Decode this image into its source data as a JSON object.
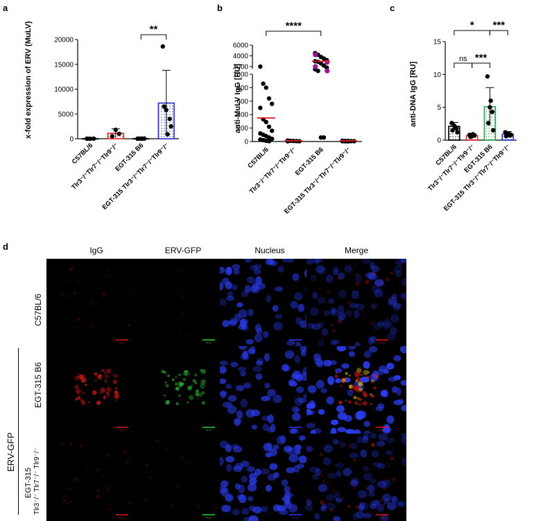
{
  "panel_letters": [
    "a",
    "b",
    "c",
    "d"
  ],
  "colors": {
    "black": "#000000",
    "red_series": "#e8222a",
    "blue_series": "#2431d6",
    "green_series": "#27a844",
    "magenta_points": "#a0119c",
    "mean_line": "#e8222a"
  },
  "chart_data": [
    {
      "panel": "a",
      "type": "bar",
      "ylabel": "x-fold expression of ERV (MuLV)",
      "ylim": [
        0,
        20000
      ],
      "yticks": [
        "0",
        "5000",
        "10000",
        "15000",
        "20000"
      ],
      "categories": [
        "C57BL/6",
        "Tlr3⁻/⁻Tlr7⁻/⁻Tlr9⁻/⁻",
        "EGT-315 B6",
        "EGT-315 Tlr3⁻/⁻Tlr7⁻/⁻Tlr9⁻/⁻"
      ],
      "values": [
        20,
        1100,
        30,
        7200
      ],
      "errors": [
        30,
        900,
        40,
        6600
      ],
      "points": [
        [
          20,
          15,
          25,
          10
        ],
        [
          500,
          1800,
          1000
        ],
        [
          10,
          20,
          40,
          30,
          25
        ],
        [
          18600,
          5800,
          4000,
          6500,
          900,
          2500
        ]
      ],
      "bar_colors": [
        "#000000",
        "#e8222a",
        "#000000",
        "#2431d6"
      ],
      "annotations": [
        {
          "text": "**",
          "between": [
            2,
            3
          ]
        }
      ]
    },
    {
      "panel": "b",
      "type": "scatter",
      "ylabel": "anti-MuLV IgG [RU]",
      "yticks_lower": [
        "0",
        "200",
        "400",
        "600",
        "800",
        "1000"
      ],
      "yticks_upper": [
        "2000",
        "4000",
        "6000"
      ],
      "categories": [
        "C57BL/6",
        "Tlr3⁻/⁻Tlr7⁻/⁻Tlr9⁻/⁻",
        "EGT-315 B6",
        "EGT-315 Tlr3⁻/⁻Tlr7⁻/⁻Tlr9⁻/⁻"
      ],
      "means": [
        350,
        10,
        3000,
        10
      ],
      "points": [
        [
          2000,
          860,
          800,
          640,
          560,
          500,
          330,
          290,
          220,
          160,
          120,
          100,
          80,
          60,
          40,
          30,
          20,
          10,
          5
        ],
        [
          15,
          10,
          8,
          6,
          4,
          3
        ],
        [
          4500,
          4200,
          3800,
          3500,
          3200,
          3000,
          2900,
          2600,
          2200,
          1800,
          1500,
          1200,
          60,
          60
        ],
        [
          12,
          10,
          8,
          6,
          5,
          4,
          3,
          2
        ]
      ],
      "magenta_points_group2": [
        4200,
        2800,
        2000,
        1200
      ],
      "annotations": [
        {
          "text": "****",
          "between": [
            0,
            2
          ]
        }
      ]
    },
    {
      "panel": "c",
      "type": "bar",
      "ylabel": "anti-DNA IgG  [RU]",
      "ylim": [
        0,
        15
      ],
      "yticks": [
        "0",
        "5",
        "10",
        "15"
      ],
      "categories": [
        "C57BL/6",
        "Tlr3⁻/⁻Tlr7⁻/⁻Tlr9⁻/⁻",
        "EGT-315 B6",
        "EGT-315 Tlr3⁻/⁻Tlr7⁻/⁻Tlr9⁻/⁻"
      ],
      "values": [
        2.1,
        0.7,
        5.1,
        0.9
      ],
      "errors": [
        0.6,
        0.3,
        2.9,
        0.4
      ],
      "points": [
        [
          2.6,
          2.2,
          1.8,
          1.5,
          2.0,
          1.2
        ],
        [
          0.8,
          0.6,
          0.7,
          0.5,
          0.9
        ],
        [
          9.7,
          5.0,
          4.3,
          2.6,
          6.0,
          1.5
        ],
        [
          1.2,
          0.9,
          0.7,
          0.6,
          1.0,
          0.8
        ]
      ],
      "bar_colors": [
        "#000000",
        "#e8222a",
        "#27a844",
        "#2431d6"
      ],
      "annotations": [
        {
          "text": "ns",
          "between": [
            0,
            1
          ]
        },
        {
          "text": "*",
          "between": [
            0,
            2
          ]
        },
        {
          "text": "***",
          "between": [
            1,
            2
          ]
        },
        {
          "text": "***",
          "between": [
            2,
            3
          ]
        }
      ]
    }
  ],
  "panel_d": {
    "column_headers": [
      "IgG",
      "ERV-GFP",
      "Nucleus",
      "Merge"
    ],
    "row_labels": [
      "C57BL/6",
      "EGT-315 B6",
      "EGT-315",
      "Tlr3⁻/⁻ Tlr7⁻/⁻ Tlr9⁻/⁻"
    ],
    "group_label": "ERV-GFP",
    "scale_bar_text": "20 µm"
  }
}
